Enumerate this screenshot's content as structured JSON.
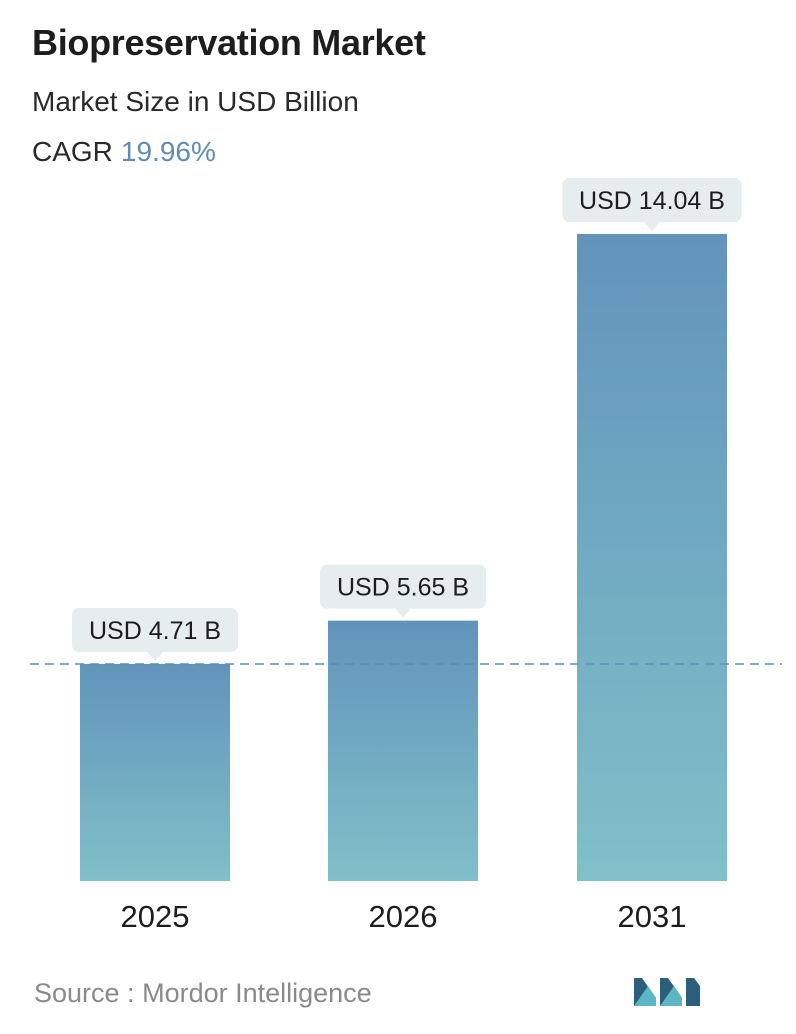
{
  "header": {
    "title": "Biopreservation Market",
    "subtitle": "Market Size in USD Billion",
    "cagr_label": "CAGR",
    "cagr_value": "19.96%"
  },
  "footer": {
    "source_label": "Source :",
    "source_name": "Mordor Intelligence",
    "logo_icon": "mordor-intelligence-logo-icon"
  },
  "colors": {
    "bar_top": "#6294bb",
    "bar_bottom": "#80c0c8",
    "label_bg": "#e6edee",
    "reference_line": "#5f8db0",
    "cagr_value": "#5f8db0",
    "logo_dark": "#2c5f7c",
    "logo_light": "#5cb6c4"
  },
  "chart_data": {
    "type": "bar",
    "categories": [
      "2025",
      "2026",
      "2031"
    ],
    "values": [
      4.71,
      5.65,
      14.04
    ],
    "data_labels": [
      "USD 4.71 B",
      "USD 5.65 B",
      "USD 14.04 B"
    ],
    "title": "Biopreservation Market",
    "subtitle": "Market Size in USD Billion",
    "xlabel": "",
    "ylabel": "",
    "ylim": [
      0,
      14.04
    ],
    "grid": false,
    "reference_line_value": 4.71,
    "legend": "none"
  }
}
